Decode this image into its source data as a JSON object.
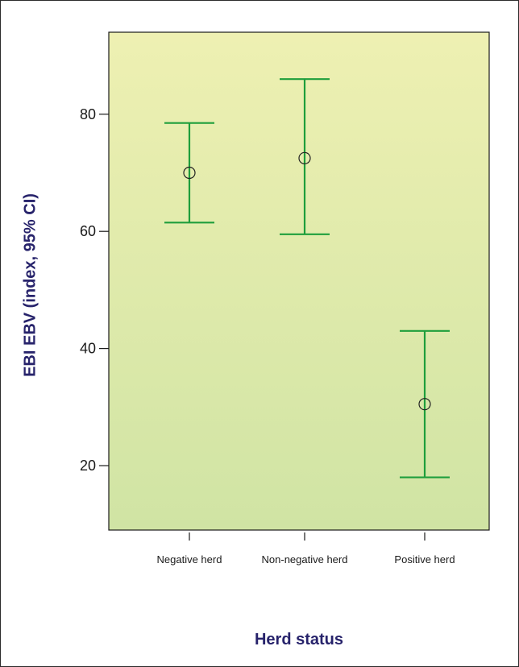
{
  "chart_data": {
    "type": "errorbar",
    "title": "",
    "xlabel": "Herd status",
    "ylabel": "EBI EBV (index, 95% CI)",
    "categories": [
      "Negative herd",
      "Non-negative herd",
      "Positive herd"
    ],
    "series": [
      {
        "mean": [
          70.0,
          72.5,
          30.5
        ],
        "ci_lower": [
          61.5,
          59.5,
          18.0
        ],
        "ci_upper": [
          78.5,
          86.0,
          43.0
        ]
      }
    ],
    "ylim": [
      9,
      94
    ],
    "yticks": [
      20,
      40,
      60,
      80
    ],
    "grid": false,
    "legend": "none"
  },
  "colors": {
    "errorbar": "#1e9e3c",
    "marker": "#222222",
    "axis": "#1a1a1a",
    "title_text": "#27236b",
    "plot_bg_top": "#eef0b2",
    "plot_bg_bottom": "#d0e4a4",
    "frame": "#2b2b2b"
  }
}
